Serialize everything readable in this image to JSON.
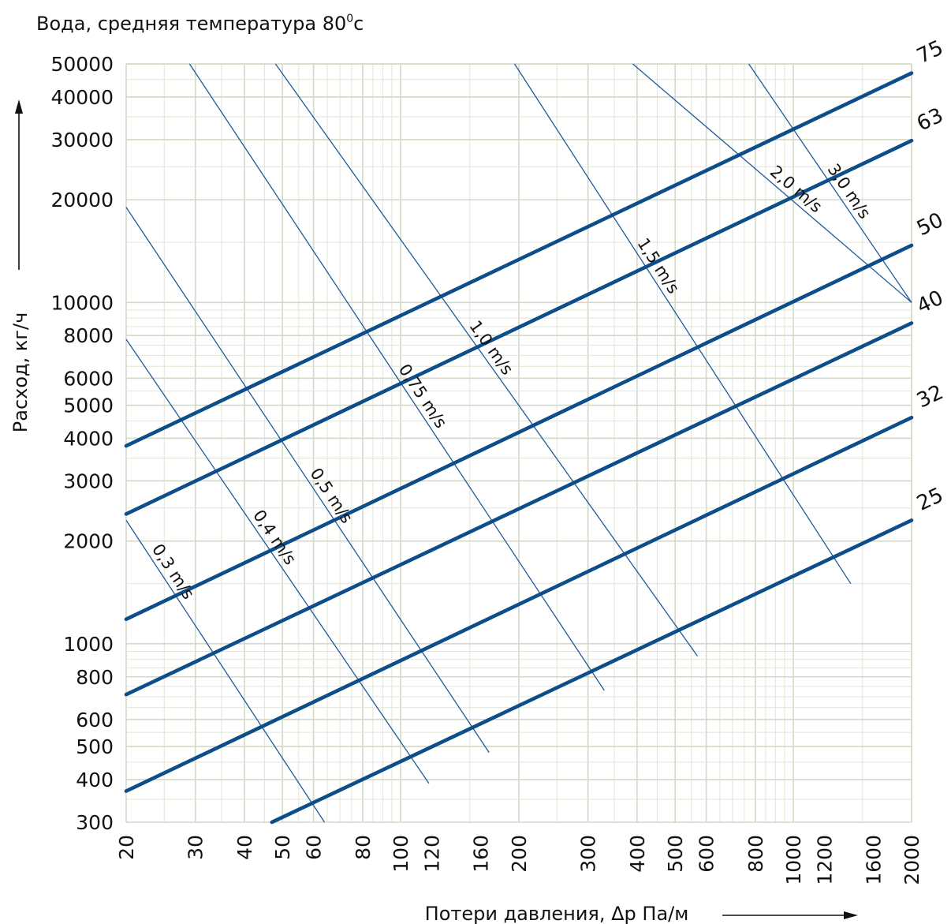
{
  "chart_data": {
    "type": "line",
    "title": "Вода, средняя температура 80",
    "title_superscript": "0",
    "title_suffix": "c",
    "xlabel": "Потери давления, Δp Па/м",
    "ylabel": "Расход, кг/ч",
    "x_scale": "log",
    "y_scale": "log",
    "xlim": [
      20,
      2000
    ],
    "ylim": [
      300,
      50000
    ],
    "grid": true,
    "x_ticks": [
      20,
      30,
      40,
      50,
      60,
      80,
      100,
      120,
      160,
      200,
      300,
      400,
      500,
      600,
      800,
      1000,
      1200,
      1600,
      2000
    ],
    "y_ticks": [
      300,
      400,
      500,
      600,
      800,
      1000,
      2000,
      3000,
      4000,
      5000,
      6000,
      8000,
      10000,
      20000,
      30000,
      40000,
      50000
    ],
    "pipe_series": [
      {
        "name": "25",
        "x": [
          47,
          2000
        ],
        "y": [
          300,
          2300
        ]
      },
      {
        "name": "32",
        "x": [
          20,
          2000
        ],
        "y": [
          370,
          4600
        ]
      },
      {
        "name": "40",
        "x": [
          20,
          2000
        ],
        "y": [
          710,
          8700
        ]
      },
      {
        "name": "50",
        "x": [
          20,
          2000
        ],
        "y": [
          1180,
          14700
        ]
      },
      {
        "name": "63",
        "x": [
          20,
          2000
        ],
        "y": [
          2400,
          29800
        ]
      },
      {
        "name": "75",
        "x": [
          20,
          2000
        ],
        "y": [
          3800,
          47000
        ]
      }
    ],
    "velocity_series": [
      {
        "name": "0,3 m/s",
        "x": [
          20,
          64
        ],
        "y": [
          2300,
          300
        ]
      },
      {
        "name": "0,4 m/s",
        "x": [
          20,
          118
        ],
        "y": [
          7800,
          390
        ]
      },
      {
        "name": "0,5 m/s",
        "x": [
          20,
          168
        ],
        "y": [
          19000,
          480
        ]
      },
      {
        "name": "0,75 m/s",
        "x": [
          29,
          330
        ],
        "y": [
          50000,
          730
        ]
      },
      {
        "name": "1,0 m/s",
        "x": [
          48,
          570
        ],
        "y": [
          50000,
          920
        ]
      },
      {
        "name": "1,5 m/s",
        "x": [
          195,
          1400
        ],
        "y": [
          50000,
          1500
        ]
      },
      {
        "name": "2,0 m/s",
        "x": [
          390,
          2000
        ],
        "y": [
          50000,
          10000
        ]
      },
      {
        "name": "3,0 m/s",
        "x": [
          770,
          2000
        ],
        "y": [
          50000,
          10000
        ]
      }
    ]
  }
}
